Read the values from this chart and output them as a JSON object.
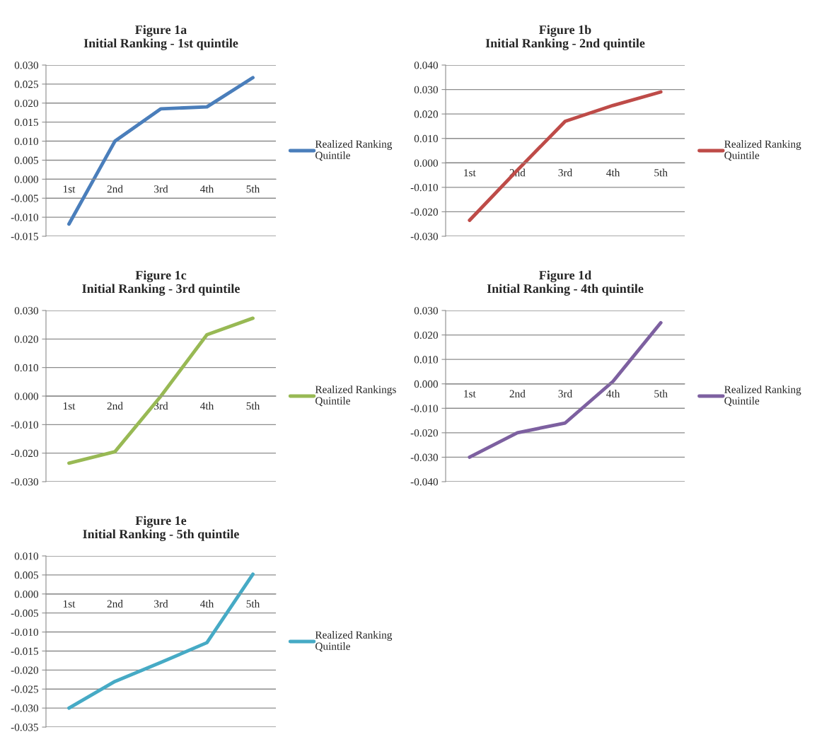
{
  "chart_data": [
    {
      "type": "line",
      "title": "Figure 1a",
      "subtitle": "Initial Ranking - 1st quintile",
      "categories": [
        "1st",
        "2nd",
        "3rd",
        "4th",
        "5th"
      ],
      "series": [
        {
          "name": "Realized Ranking Quintile",
          "color": "#4a7ebb",
          "values": [
            -0.0118,
            0.01,
            0.0185,
            0.019,
            0.0267
          ]
        }
      ],
      "ylim": [
        -0.015,
        0.03
      ],
      "yticks": [
        {
          "value": -0.015,
          "label": "-0.015"
        },
        {
          "value": -0.01,
          "label": "-0.010"
        },
        {
          "value": -0.005,
          "label": "-0.005"
        },
        {
          "value": 0,
          "label": "0.000"
        },
        {
          "value": 0.005,
          "label": "0.005"
        },
        {
          "value": 0.01,
          "label": "0.010"
        },
        {
          "value": 0.015,
          "label": "0.015"
        },
        {
          "value": 0.02,
          "label": "0.020"
        },
        {
          "value": 0.025,
          "label": "0.025"
        },
        {
          "value": 0.03,
          "label": "0.030"
        }
      ],
      "grid": "y",
      "legend": "right",
      "marker": "none",
      "line_style": "solid"
    },
    {
      "type": "line",
      "title": "Figure 1b",
      "subtitle": "Initial Ranking - 2nd quintile",
      "categories": [
        "1st",
        "2nd",
        "3rd",
        "4th",
        "5th"
      ],
      "series": [
        {
          "name": "Realized Ranking Quintile",
          "color": "#be4b48",
          "values": [
            -0.0235,
            -0.003,
            0.017,
            0.0235,
            0.029
          ]
        }
      ],
      "ylim": [
        -0.03,
        0.04
      ],
      "yticks": [
        {
          "value": -0.03,
          "label": "-0.030"
        },
        {
          "value": -0.02,
          "label": "-0.020"
        },
        {
          "value": -0.01,
          "label": "-0.010"
        },
        {
          "value": 0,
          "label": "0.000"
        },
        {
          "value": 0.01,
          "label": "0.010"
        },
        {
          "value": 0.02,
          "label": "0.020"
        },
        {
          "value": 0.03,
          "label": "0.030"
        },
        {
          "value": 0.04,
          "label": "0.040"
        }
      ],
      "grid": "y",
      "legend": "right",
      "marker": "none",
      "line_style": "solid"
    },
    {
      "type": "line",
      "title": "Figure 1c",
      "subtitle": "Initial Ranking - 3rd quintile",
      "categories": [
        "1st",
        "2nd",
        "3rd",
        "4th",
        "5th"
      ],
      "series": [
        {
          "name": "Realized Rankings Quintile",
          "color": "#98b954",
          "values": [
            -0.0235,
            -0.0195,
            0.0,
            0.0215,
            0.0273
          ]
        }
      ],
      "ylim": [
        -0.03,
        0.03
      ],
      "yticks": [
        {
          "value": -0.03,
          "label": "-0.030"
        },
        {
          "value": -0.02,
          "label": "-0.020"
        },
        {
          "value": -0.01,
          "label": "-0.010"
        },
        {
          "value": 0,
          "label": "0.000"
        },
        {
          "value": 0.01,
          "label": "0.010"
        },
        {
          "value": 0.02,
          "label": "0.020"
        },
        {
          "value": 0.03,
          "label": "0.030"
        }
      ],
      "grid": "y",
      "legend": "right",
      "marker": "none",
      "line_style": "solid"
    },
    {
      "type": "line",
      "title": "Figure 1d",
      "subtitle": "Initial Ranking - 4th quintile",
      "categories": [
        "1st",
        "2nd",
        "3rd",
        "4th",
        "5th"
      ],
      "series": [
        {
          "name": "Realized Ranking Quintile",
          "color": "#7d60a0",
          "values": [
            -0.03,
            -0.02,
            -0.016,
            0.001,
            0.025
          ]
        }
      ],
      "ylim": [
        -0.04,
        0.03
      ],
      "yticks": [
        {
          "value": -0.04,
          "label": "-0.040"
        },
        {
          "value": -0.03,
          "label": "-0.030"
        },
        {
          "value": -0.02,
          "label": "-0.020"
        },
        {
          "value": -0.01,
          "label": "-0.010"
        },
        {
          "value": 0,
          "label": "0.000"
        },
        {
          "value": 0.01,
          "label": "0.010"
        },
        {
          "value": 0.02,
          "label": "0.020"
        },
        {
          "value": 0.03,
          "label": "0.030"
        }
      ],
      "grid": "y",
      "legend": "right",
      "marker": "none",
      "line_style": "solid"
    },
    {
      "type": "line",
      "title": "Figure 1e",
      "subtitle": "Initial Ranking - 5th quintile",
      "categories": [
        "1st",
        "2nd",
        "3rd",
        "4th",
        "5th"
      ],
      "series": [
        {
          "name": "Realized Ranking Quintile",
          "color": "#46aac5",
          "values": [
            -0.03,
            -0.023,
            -0.018,
            -0.0128,
            0.0052
          ]
        }
      ],
      "ylim": [
        -0.035,
        0.01
      ],
      "yticks": [
        {
          "value": -0.035,
          "label": "-0.035"
        },
        {
          "value": -0.03,
          "label": "-0.030"
        },
        {
          "value": -0.025,
          "label": "-0.025"
        },
        {
          "value": -0.02,
          "label": "-0.020"
        },
        {
          "value": -0.015,
          "label": "-0.015"
        },
        {
          "value": -0.01,
          "label": "-0.010"
        },
        {
          "value": -0.005,
          "label": "-0.005"
        },
        {
          "value": 0,
          "label": "0.000"
        },
        {
          "value": 0.005,
          "label": "0.005"
        },
        {
          "value": 0.01,
          "label": "0.010"
        }
      ],
      "grid": "y",
      "legend": "right",
      "marker": "none",
      "line_style": "solid"
    }
  ]
}
